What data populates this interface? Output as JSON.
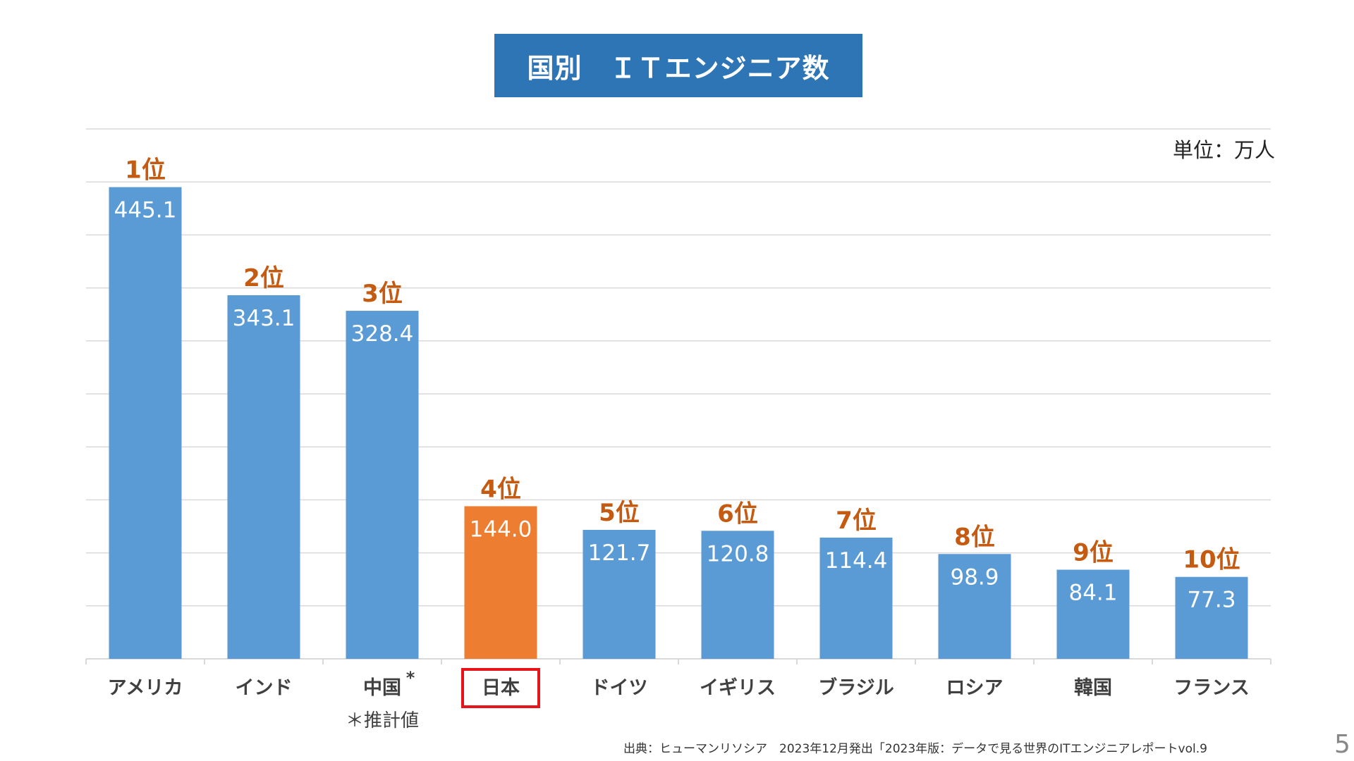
{
  "chart_data": {
    "type": "bar",
    "title": "国別　ＩＴエンジニア数",
    "unit_label": "単位：万人",
    "categories": [
      "アメリカ",
      "インド",
      "中国",
      "日本",
      "ドイツ",
      "イギリス",
      "ブラジル",
      "ロシア",
      "韓国",
      "フランス"
    ],
    "values": [
      445.1,
      343.1,
      328.4,
      144.0,
      121.7,
      120.8,
      114.4,
      98.9,
      84.1,
      77.3
    ],
    "value_labels": [
      "445.1",
      "343.1",
      "328.4",
      "144.0",
      "121.7",
      "120.8",
      "114.4",
      "98.9",
      "84.1",
      "77.3"
    ],
    "ranks": [
      "1位",
      "2位",
      "3位",
      "4位",
      "5位",
      "6位",
      "7位",
      "8位",
      "9位",
      "10位"
    ],
    "highlight_index": 3,
    "ylim": [
      0,
      500
    ],
    "grid": true,
    "footnote_mark": "*",
    "footnote_mark_index": 2,
    "footnote_text": "＊推計値",
    "colors": {
      "bar": "#5b9bd5",
      "highlight": "#ed7d31",
      "rank": "#c55a11",
      "value": "#ffffff",
      "highlight_box": "#e8141b",
      "grid": "#d9d9d9"
    }
  },
  "source_note": "出典：ヒューマンリソシア　2023年12月発出「2023年版：データで見る世界のITエンジニアレポートvol.9",
  "page_number": "5"
}
